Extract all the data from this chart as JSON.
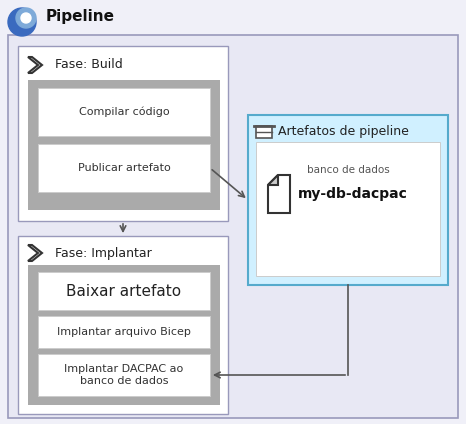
{
  "title": "Pipeline",
  "title_fontsize": 11,
  "bg_outer": "#f0f0f8",
  "bg_pipeline": "#e8e8f4",
  "bg_build_box": "#ffffff",
  "bg_gray_inner": "#aaaaaa",
  "bg_step": "#ffffff",
  "bg_artifact_box": "#d0f0ff",
  "bg_artifact_inner": "#ffffff",
  "border_pipeline": "#9999bb",
  "border_build": "#9999bb",
  "border_artifact": "#55aacc",
  "border_step": "#cccccc",
  "arrow_color": "#555555",
  "icon_blue_dark": "#3a6abf",
  "icon_blue_light": "#7eaad9",
  "build_label": "Fase: Build",
  "deploy_label": "Fase: Implantar",
  "artifact_label": "Artefatos de pipeline",
  "artifact_sub": "banco de dados",
  "artifact_name": "my-db-dacpac",
  "steps_build": [
    "Compilar código",
    "Publicar artefato"
  ],
  "steps_deploy": [
    "Implantar arquivo Bicep",
    "Implantar DACPAC ao\nbanco de dados"
  ],
  "deploy_big_step": "Baixar artefato",
  "step_fontsize": 8,
  "label_fontsize": 9,
  "big_step_fontsize": 11,
  "artifact_name_fontsize": 10
}
